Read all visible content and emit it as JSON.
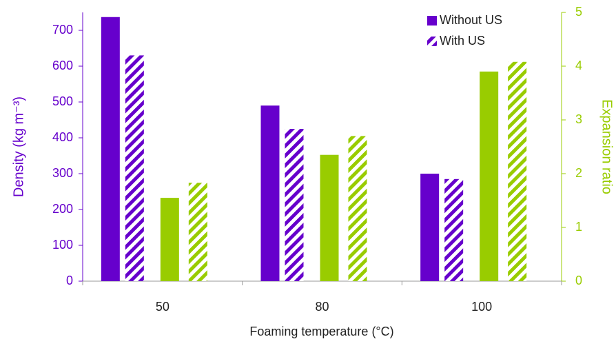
{
  "chart_data": {
    "type": "bar",
    "x_label": "Foaming temperature (°C)",
    "y_label": "Density (kg m⁻³)",
    "y2_label": "Expansion ratio",
    "categories": [
      "50",
      "80",
      "100"
    ],
    "series": [
      {
        "name": "Without US",
        "color": "#6600cc",
        "hatch": false,
        "values": [
          737,
          490,
          300
        ]
      },
      {
        "name": "With US",
        "color": "#6600cc",
        "hatch": true,
        "values": [
          630,
          425,
          285
        ]
      },
      {
        "color": "#99cc00",
        "hatch": false,
        "axis": "y2",
        "values": [
          1.55,
          2.35,
          3.9
        ]
      },
      {
        "color": "#99cc00",
        "hatch": true,
        "axis": "y2",
        "values": [
          1.83,
          2.7,
          4.08
        ]
      }
    ],
    "ylim": [
      0,
      750
    ],
    "yticks": [
      0,
      100,
      200,
      300,
      400,
      500,
      600,
      700
    ],
    "y2lim": [
      0,
      5
    ],
    "y2ticks": [
      0,
      1,
      2,
      3,
      4,
      5
    ],
    "legend": "upper right"
  }
}
